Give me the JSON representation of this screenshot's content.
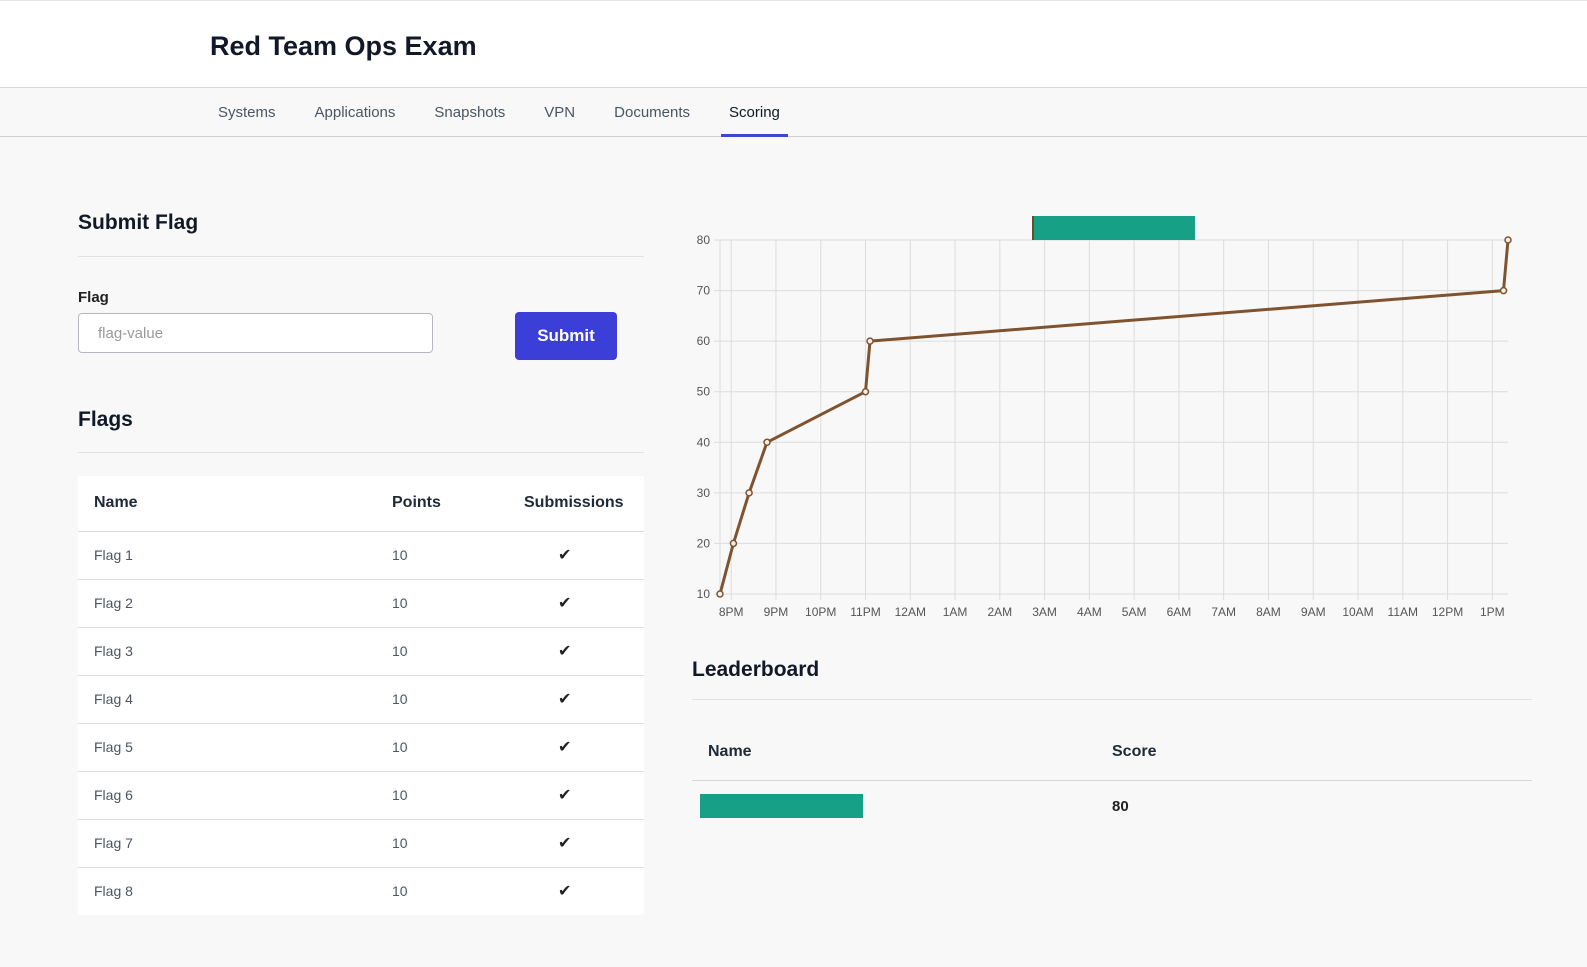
{
  "header": {
    "title": "Red Team Ops Exam"
  },
  "nav": {
    "tabs": [
      {
        "label": "Systems"
      },
      {
        "label": "Applications"
      },
      {
        "label": "Snapshots"
      },
      {
        "label": "VPN"
      },
      {
        "label": "Documents"
      },
      {
        "label": "Scoring"
      }
    ],
    "active": "Scoring"
  },
  "submit_flag": {
    "title": "Submit Flag",
    "field_label": "Flag",
    "placeholder": "flag-value",
    "value": "",
    "button_label": "Submit"
  },
  "flags": {
    "title": "Flags",
    "columns": [
      "Name",
      "Points",
      "Submissions"
    ],
    "rows": [
      {
        "name": "Flag 1",
        "points": "10",
        "submitted": true
      },
      {
        "name": "Flag 2",
        "points": "10",
        "submitted": true
      },
      {
        "name": "Flag 3",
        "points": "10",
        "submitted": true
      },
      {
        "name": "Flag 4",
        "points": "10",
        "submitted": true
      },
      {
        "name": "Flag 5",
        "points": "10",
        "submitted": true
      },
      {
        "name": "Flag 6",
        "points": "10",
        "submitted": true
      },
      {
        "name": "Flag 7",
        "points": "10",
        "submitted": true
      },
      {
        "name": "Flag 8",
        "points": "10",
        "submitted": true
      }
    ],
    "check_glyph": "✔"
  },
  "chart_data": {
    "type": "line",
    "title": "",
    "xlabel": "",
    "ylabel": "",
    "x_tick_labels": [
      "8PM",
      "9PM",
      "10PM",
      "11PM",
      "12AM",
      "1AM",
      "2AM",
      "3AM",
      "4AM",
      "5AM",
      "6AM",
      "7AM",
      "8AM",
      "9AM",
      "10AM",
      "11AM",
      "12PM",
      "1PM"
    ],
    "y_ticks": [
      10,
      20,
      30,
      40,
      50,
      60,
      70,
      80
    ],
    "ylim": [
      10,
      80
    ],
    "x_unit": "hours since 8PM",
    "xlim": [
      -0.25,
      17.35
    ],
    "grid": true,
    "legend": "top-center",
    "series": [
      {
        "color": "#7f532f",
        "points": [
          {
            "x": -0.25,
            "y": 10
          },
          {
            "x": 0.05,
            "y": 20
          },
          {
            "x": 0.4,
            "y": 30
          },
          {
            "x": 0.8,
            "y": 40
          },
          {
            "x": 3.0,
            "y": 50
          },
          {
            "x": 3.1,
            "y": 60
          },
          {
            "x": 17.25,
            "y": 70
          },
          {
            "x": 17.35,
            "y": 80
          }
        ]
      }
    ]
  },
  "leaderboard": {
    "title": "Leaderboard",
    "columns": [
      "Name",
      "Score"
    ],
    "rows": [
      {
        "name_redacted": true,
        "score": "80"
      }
    ]
  },
  "colors": {
    "accent": "#3b3fd8",
    "redaction": "#16a085",
    "series_line": "#7f532f"
  }
}
